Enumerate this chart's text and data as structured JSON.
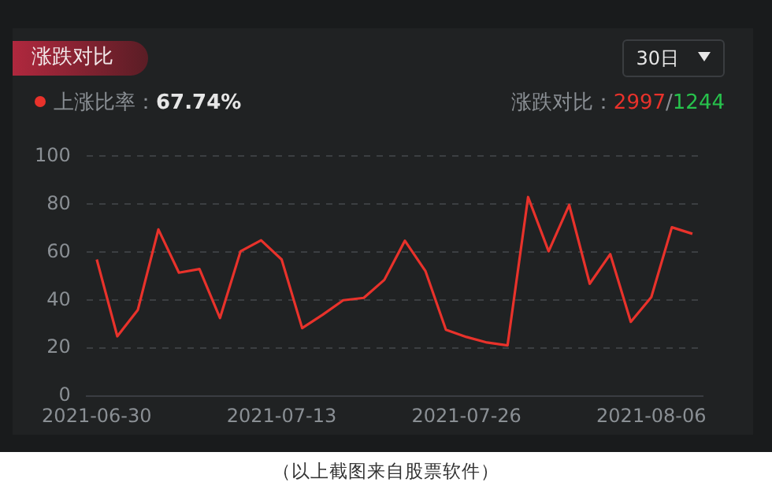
{
  "chart_data": {
    "type": "line",
    "title": "涨跌对比",
    "categories": [
      "2021-06-30",
      null,
      null,
      null,
      null,
      null,
      null,
      null,
      null,
      "2021-07-13",
      null,
      null,
      null,
      null,
      null,
      null,
      null,
      null,
      "2021-07-26",
      null,
      null,
      null,
      null,
      null,
      null,
      null,
      null,
      "2021-08-06",
      null,
      null
    ],
    "series": [
      {
        "color": "#e8322b",
        "values": [
          57,
          25,
          36,
          69.5,
          51.5,
          53,
          32.6,
          60.4,
          65,
          57,
          28.4,
          34,
          40,
          41,
          48.5,
          64.8,
          52.2,
          27.7,
          24.7,
          22.4,
          21.2,
          83,
          60.4,
          79.7,
          46.9,
          59.2,
          31,
          41.3,
          70.4,
          67.7
        ]
      }
    ],
    "ylim": [
      0,
      100
    ],
    "yticks": [
      0,
      20,
      40,
      60,
      80,
      100
    ],
    "grid": "y",
    "legend": false,
    "marker": "none",
    "line_style": "solid",
    "annotations": [
      "30日",
      "上涨比率：",
      "67.74%",
      "涨跌对比：",
      "2997",
      "/",
      "1244",
      "（以上截图来自股票软件）"
    ]
  }
}
